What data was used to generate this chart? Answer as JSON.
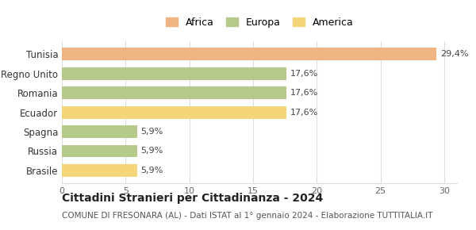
{
  "categories": [
    "Brasile",
    "Russia",
    "Spagna",
    "Ecuador",
    "Romania",
    "Regno Unito",
    "Tunisia"
  ],
  "values": [
    5.9,
    5.9,
    5.9,
    17.6,
    17.6,
    17.6,
    29.4
  ],
  "labels": [
    "5,9%",
    "5,9%",
    "5,9%",
    "17,6%",
    "17,6%",
    "17,6%",
    "29,4%"
  ],
  "colors": [
    "#f5d57a",
    "#b5c98a",
    "#b5c98a",
    "#f5d57a",
    "#b5c98a",
    "#b5c98a",
    "#f0b482"
  ],
  "legend": [
    {
      "label": "Africa",
      "color": "#f0b482"
    },
    {
      "label": "Europa",
      "color": "#b5c98a"
    },
    {
      "label": "America",
      "color": "#f5d57a"
    }
  ],
  "xlim": [
    0,
    31
  ],
  "xticks": [
    0,
    5,
    10,
    15,
    20,
    25,
    30
  ],
  "title": "Cittadini Stranieri per Cittadinanza - 2024",
  "subtitle": "COMUNE DI FRESONARA (AL) - Dati ISTAT al 1° gennaio 2024 - Elaborazione TUTTITALIA.IT",
  "title_fontsize": 10,
  "subtitle_fontsize": 7.5,
  "background_color": "#ffffff",
  "grid_color": "#dddddd",
  "bar_height": 0.65
}
